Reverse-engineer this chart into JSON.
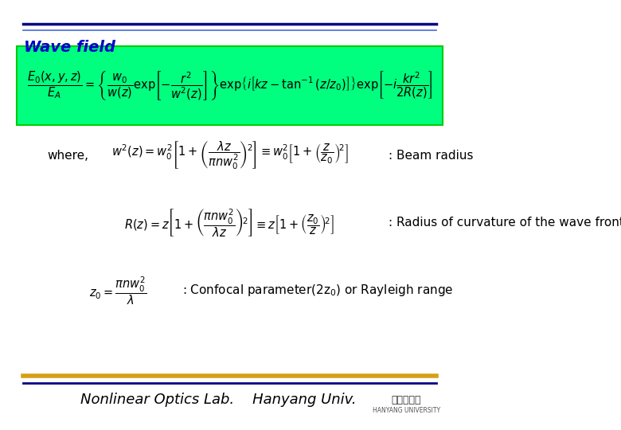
{
  "title": "Wave field",
  "title_color": "#0000CC",
  "bg_color": "#FFFFFF",
  "header_line_color1": "#000080",
  "header_line_color2": "#4169E1",
  "footer_line_color1": "#D4A017",
  "footer_line_color2": "#000080",
  "green_box_color": "#00FF7F",
  "green_box_edge": "#00CC00",
  "main_eq": "$\\dfrac{E_0(x,y,z)}{E_A} = \\left\\{\\dfrac{w_0}{w(z)}\\exp\\!\\left[-\\dfrac{r^2}{w^2(z)}\\right]\\right\\} \\exp\\!\\left\\{i\\left[kz - \\tan^{-1}(z/z_0)\\right]\\right\\}\\exp\\!\\left[-i\\dfrac{kr^2}{2R(z)}\\right]$",
  "eq1": "$w^2(z) = w_0^2\\left[1+\\left(\\dfrac{\\lambda z}{\\pi n w_0^2}\\right)^{\\!2}\\right] \\equiv w_0^2\\left[1+\\left(\\dfrac{z}{z_0}\\right)^{\\!2}\\right]$",
  "eq1_label": "where,",
  "eq1_note": ": Beam radius",
  "eq2": "$R(z) = z\\left[1+\\left(\\dfrac{\\pi n w_0^2}{\\lambda z}\\right)^{\\!2}\\right] \\equiv z\\left[1+\\left(\\dfrac{z_0}{z}\\right)^{\\!2}\\right]$",
  "eq2_note": ": Radius of curvature of the wave front",
  "eq3": "$z_0 = \\dfrac{\\pi n w_0^2}{\\lambda}$",
  "eq3_note": ": Confocal parameter(2z$_0$) or Rayleigh range",
  "footer_text": "Nonlinear Optics Lab.    Hanyang Univ.",
  "footer_color": "#000000"
}
